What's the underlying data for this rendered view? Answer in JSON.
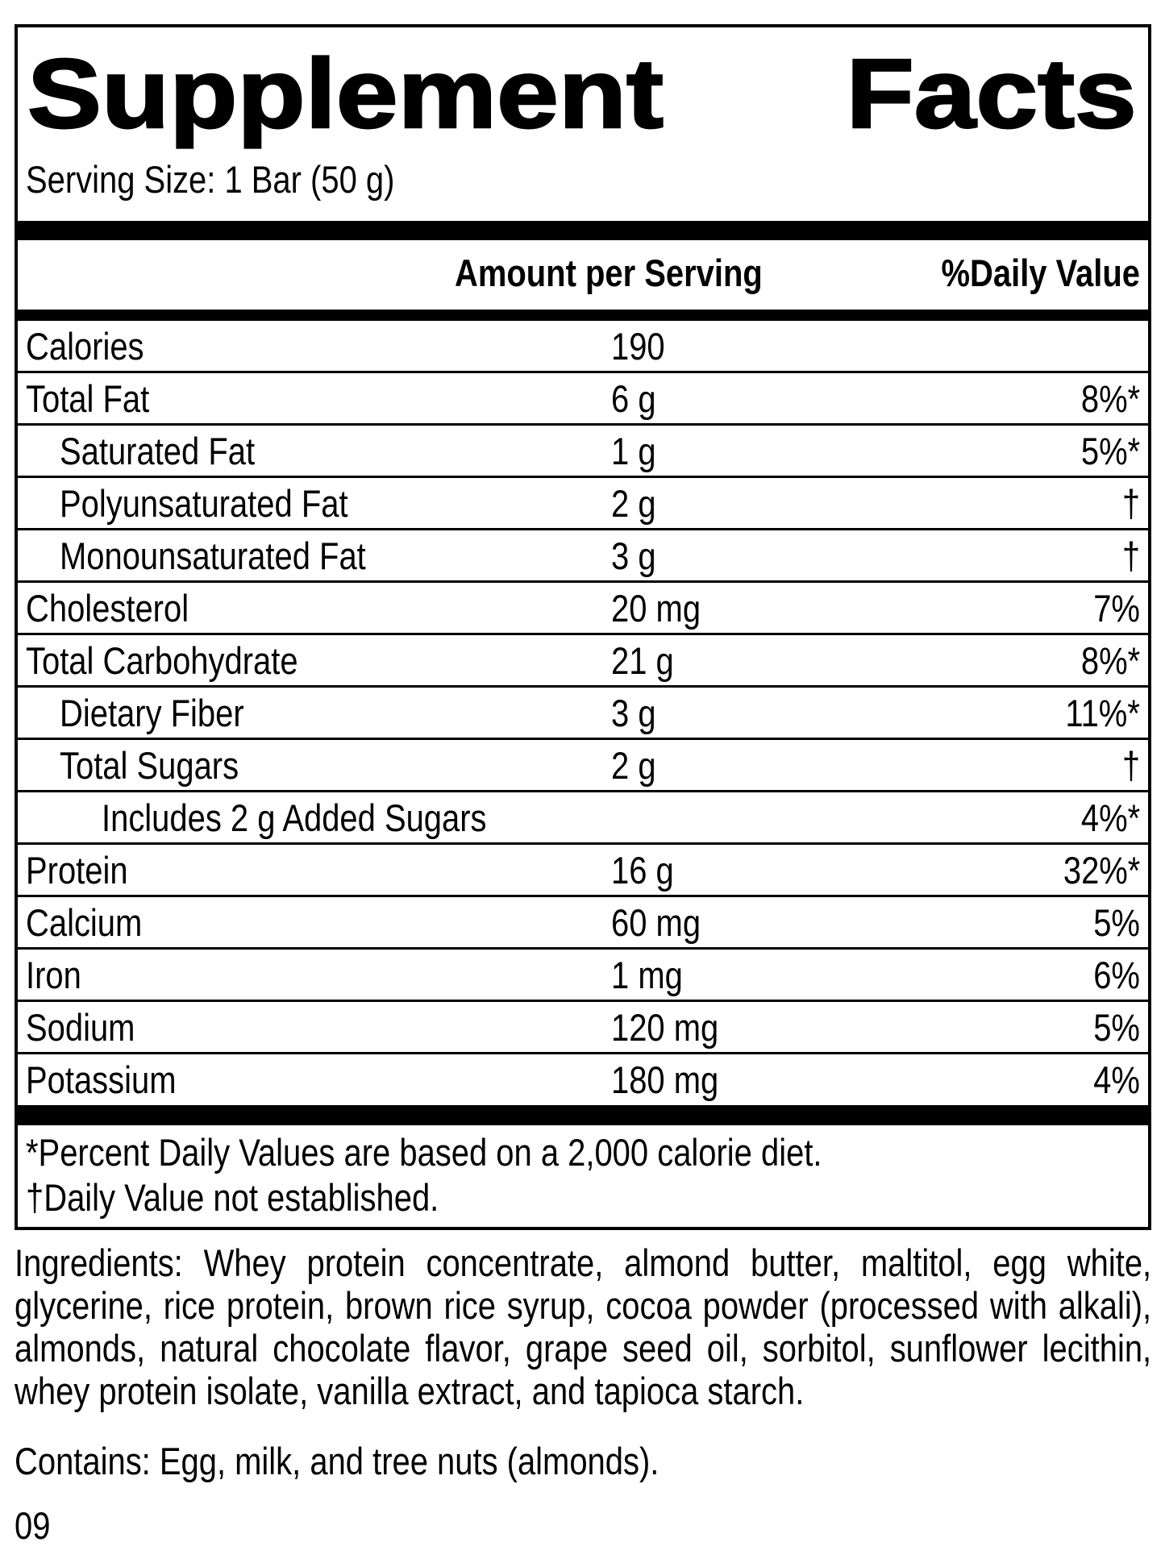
{
  "panel": {
    "title_left": "Supplement",
    "title_right": "Facts",
    "serving_size": "Serving Size: 1 Bar (50 g)",
    "columns": {
      "amount_header": "Amount per Serving",
      "daily_value_header": "%Daily Value"
    },
    "rows": [
      {
        "name": "Calories",
        "amount": "190",
        "dv": "",
        "indent": 0
      },
      {
        "name": "Total Fat",
        "amount": "6 g",
        "dv": "8%*",
        "indent": 0
      },
      {
        "name": "Saturated Fat",
        "amount": "1 g",
        "dv": "5%*",
        "indent": 1
      },
      {
        "name": "Polyunsaturated Fat",
        "amount": "2 g",
        "dv": "†",
        "indent": 1
      },
      {
        "name": "Monounsaturated Fat",
        "amount": "3 g",
        "dv": "†",
        "indent": 1
      },
      {
        "name": "Cholesterol",
        "amount": "20 mg",
        "dv": "7%",
        "indent": 0
      },
      {
        "name": "Total Carbohydrate",
        "amount": "21 g",
        "dv": "8%*",
        "indent": 0
      },
      {
        "name": "Dietary Fiber",
        "amount": "3 g",
        "dv": "11%*",
        "indent": 1
      },
      {
        "name": "Total Sugars",
        "amount": "2 g",
        "dv": "†",
        "indent": 1
      },
      {
        "name": "Includes 2 g Added Sugars",
        "amount": "",
        "dv": "4%*",
        "indent": 2
      },
      {
        "name": "Protein",
        "amount": "16 g",
        "dv": "32%*",
        "indent": 0
      },
      {
        "name": "Calcium",
        "amount": "60 mg",
        "dv": "5%",
        "indent": 0
      },
      {
        "name": "Iron",
        "amount": "1 mg",
        "dv": "6%",
        "indent": 0
      },
      {
        "name": "Sodium",
        "amount": "120 mg",
        "dv": "5%",
        "indent": 0
      },
      {
        "name": "Potassium",
        "amount": "180 mg",
        "dv": "4%",
        "indent": 0
      }
    ],
    "footnotes": [
      "*Percent Daily Values are based on a 2,000 calorie diet.",
      "†Daily Value not established."
    ]
  },
  "ingredients": "Ingredients: Whey protein concentrate, almond butter, maltitol, egg white, glycerine, rice protein, brown rice syrup, cocoa powder (processed with alkali), almonds, natural chocolate flavor, grape seed oil, sorbitol, sunflower lecithin, whey protein isolate, vanilla extract, and tapioca starch.",
  "contains": "Contains: Egg, milk, and tree nuts (almonds).",
  "footer_code": "09",
  "colors": {
    "text": "#000000",
    "background": "#ffffff"
  }
}
